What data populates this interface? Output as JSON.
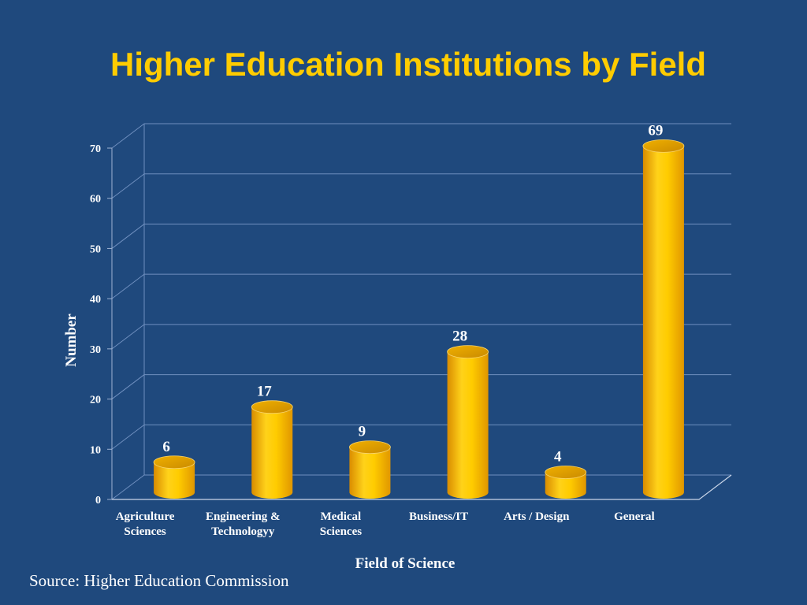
{
  "title": "Higher Education Institutions by Field",
  "source": "Source: Higher Education Commission",
  "colors": {
    "background": "#1f497d",
    "title": "#ffcc00",
    "bar": "#ffc000",
    "text": "#ffffff"
  },
  "chart_data": {
    "type": "bar",
    "style": "3d-cylinder",
    "title": "Higher Education Institutions by Field",
    "xlabel": "Field of Science",
    "ylabel": "Number",
    "categories": [
      [
        "Agriculture",
        "Sciences"
      ],
      [
        "Engineering &",
        "Technologyy"
      ],
      [
        "Medical",
        "Sciences"
      ],
      [
        "Business/IT"
      ],
      [
        "Arts / Design"
      ],
      [
        "General"
      ]
    ],
    "values": [
      6,
      17,
      9,
      28,
      4,
      69
    ],
    "data_labels": [
      "6",
      "17",
      "9",
      "28",
      "4",
      "69"
    ],
    "ylim": [
      0,
      70
    ],
    "yticks": [
      "0",
      "10",
      "20",
      "30",
      "40",
      "50",
      "60",
      "70"
    ],
    "grid": true,
    "legend": "none"
  }
}
